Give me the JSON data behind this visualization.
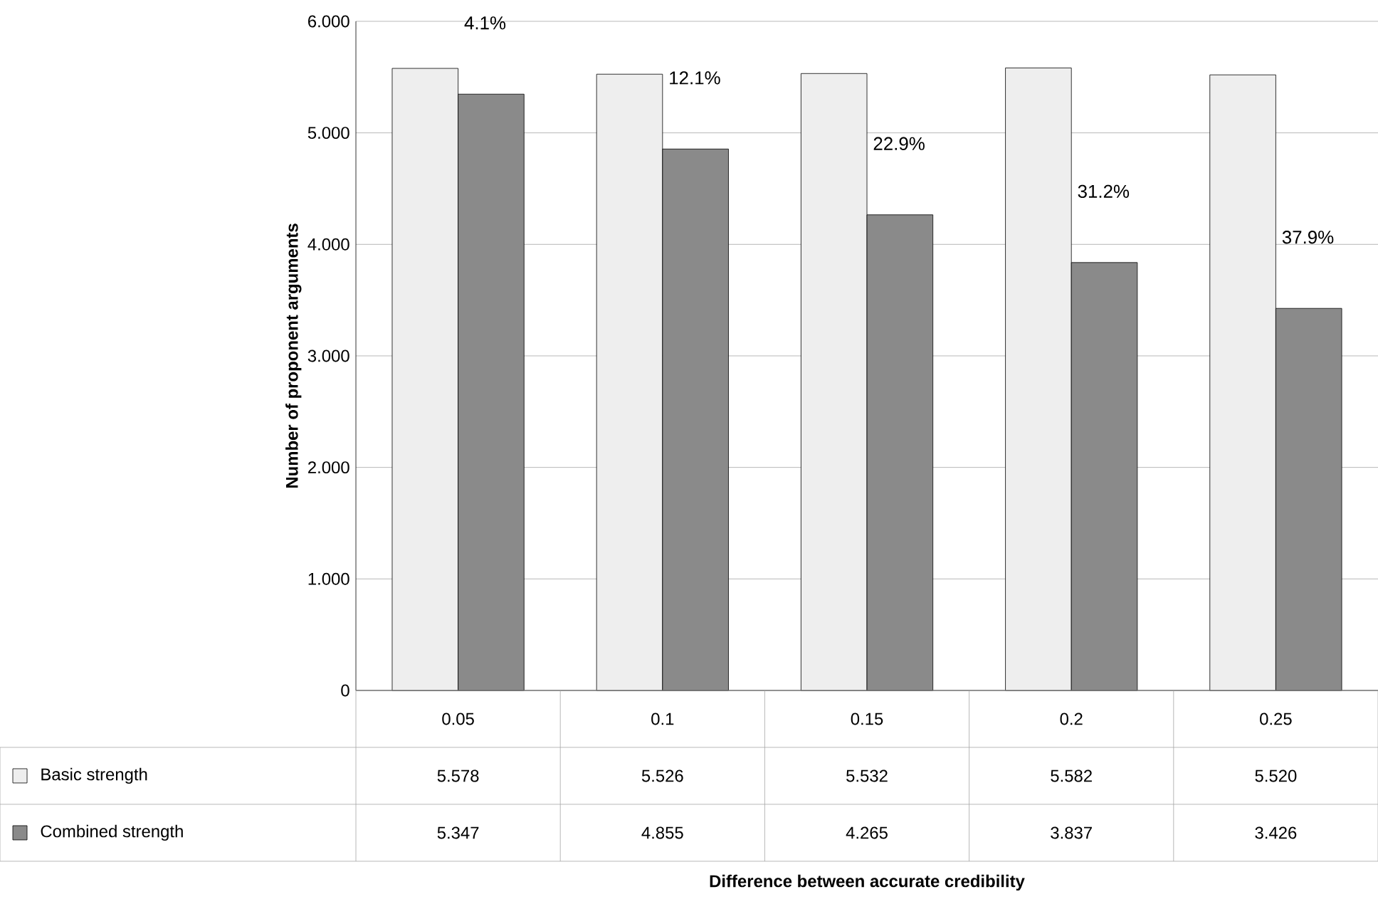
{
  "chart_data": {
    "type": "bar",
    "ylabel": "Number of proponent arguments",
    "categories": [
      "0.05",
      "0.1",
      "0.15",
      "0.2",
      "0.25"
    ],
    "series": [
      {
        "name": "Basic strength",
        "color": "#eeeeee",
        "values": [
          5.578,
          5.526,
          5.532,
          5.582,
          5.52
        ],
        "value_labels": [
          "5.578",
          "5.526",
          "5.532",
          "5.582",
          "5.520"
        ]
      },
      {
        "name": "Combined strength",
        "color": "#8a8a8a",
        "values": [
          5.347,
          4.855,
          4.265,
          3.837,
          3.426
        ],
        "value_labels": [
          "5.347",
          "4.855",
          "4.265",
          "3.837",
          "3.426"
        ]
      }
    ],
    "ylim": [
      0,
      6
    ],
    "yticks": [
      0,
      {
        "value": 1,
        "label": "1.000"
      },
      {
        "value": 2,
        "label": "2.000"
      },
      {
        "value": 3,
        "label": "3.000"
      },
      {
        "value": 4,
        "label": "4.000"
      },
      {
        "value": 5,
        "label": "5.000"
      },
      {
        "value": 6,
        "label": "6.000"
      }
    ],
    "grid": "y",
    "legend": "bottom",
    "annotations": [
      "4.1%",
      "12.1%",
      "22.9%",
      "31.2%",
      "37.9%",
      "Difference between accurate credibility"
    ]
  }
}
